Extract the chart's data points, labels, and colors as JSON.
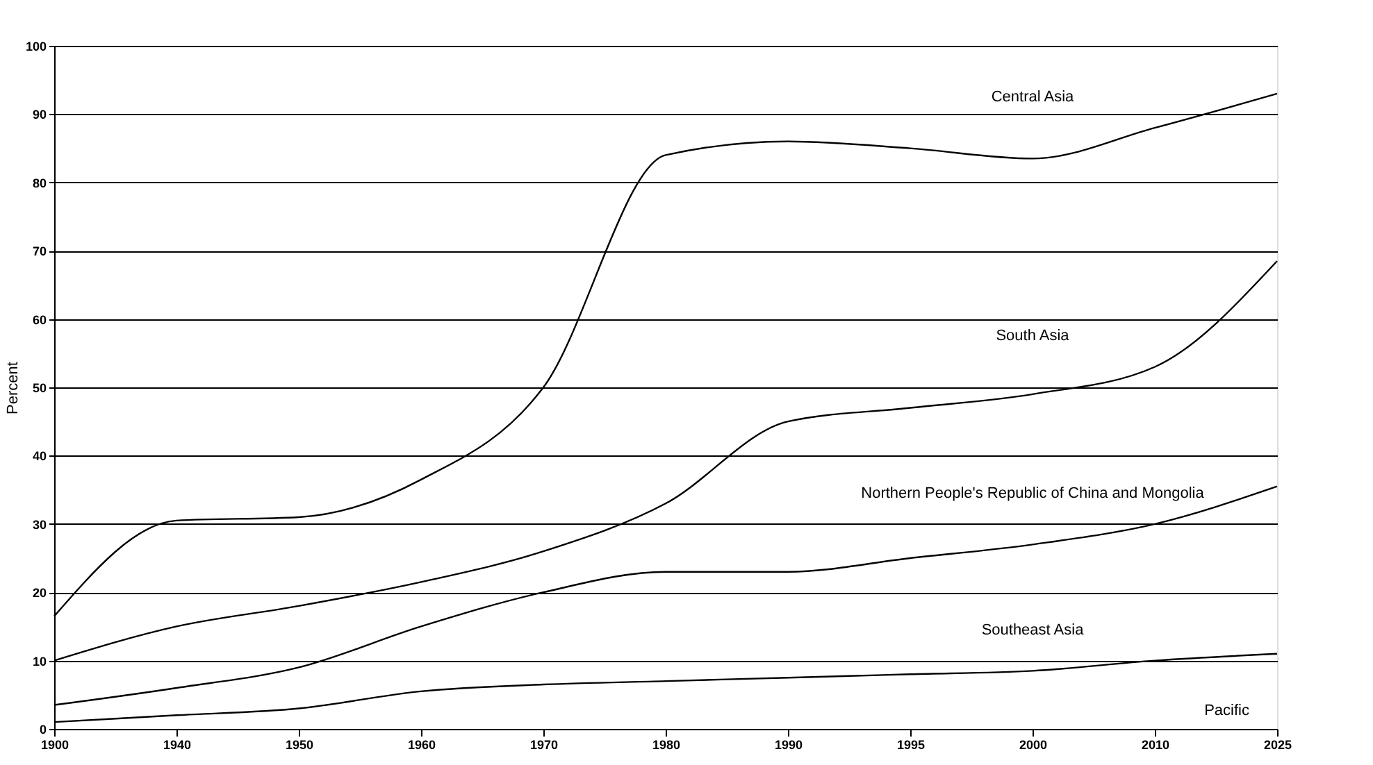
{
  "chart_data": {
    "type": "line",
    "ylabel": "Percent",
    "categories": [
      "1900",
      "1940",
      "1950",
      "1960",
      "1970",
      "1980",
      "1990",
      "1995",
      "2000",
      "2010",
      "2025"
    ],
    "ylim": [
      0,
      100
    ],
    "yticks": [
      0,
      10,
      20,
      30,
      40,
      50,
      60,
      70,
      80,
      90,
      100
    ],
    "grid": "y",
    "legend": false,
    "marker": "none",
    "line_style": "solid",
    "series": [
      {
        "name": "Central Asia",
        "color": "#000000",
        "values": [
          16.5,
          30.5,
          31,
          36.5,
          50,
          84,
          86,
          85,
          83.5,
          88,
          93
        ]
      },
      {
        "name": "South Asia",
        "color": "#000000",
        "values": [
          10,
          15,
          18,
          21.5,
          26,
          33,
          45,
          47,
          49,
          53,
          68.5
        ]
      },
      {
        "name": "Northern People's Republic of China and Mongolia",
        "color": "#000000",
        "values": [
          3.5,
          6,
          9,
          15,
          20,
          23,
          23,
          25,
          27,
          30,
          35.5
        ]
      },
      {
        "name": "Southeast Asia",
        "color": "#000000",
        "values": [
          1,
          2,
          3,
          5.5,
          6.5,
          7,
          7.5,
          8,
          8.5,
          10,
          11
        ]
      }
    ],
    "annotations": [
      "Pacific"
    ]
  }
}
